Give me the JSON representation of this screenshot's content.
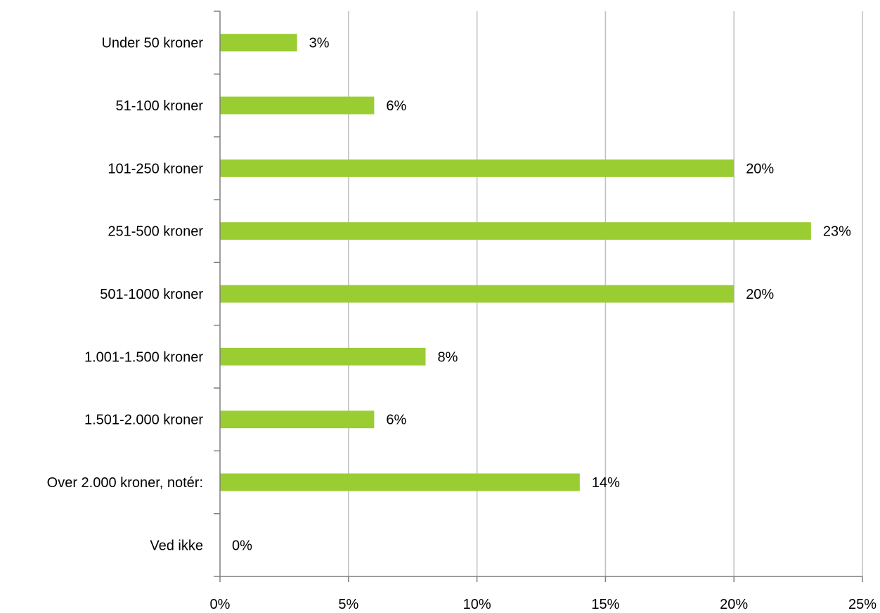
{
  "chart_data": {
    "type": "bar",
    "orientation": "horizontal",
    "title": "",
    "xlabel": "",
    "ylabel": "",
    "categories": [
      "Under 50 kroner",
      "51-100 kroner",
      "101-250 kroner",
      "251-500 kroner",
      "501-1000 kroner",
      "1.001-1.500 kroner",
      "1.501-2.000 kroner",
      "Over 2.000 kroner, notér:",
      "Ved ikke"
    ],
    "values": [
      3,
      6,
      20,
      23,
      20,
      8,
      6,
      14,
      0
    ],
    "data_labels": [
      "3%",
      "6%",
      "20%",
      "23%",
      "20%",
      "8%",
      "6%",
      "14%",
      "0%"
    ],
    "xlim": [
      0,
      25
    ],
    "x_ticks": [
      0,
      5,
      10,
      15,
      20,
      25
    ],
    "x_tick_labels": [
      "0%",
      "5%",
      "10%",
      "15%",
      "20%",
      "25%"
    ],
    "grid": "vertical",
    "legend": "none",
    "bar_color": "#9acd32",
    "grid_color": "#bfbfbf",
    "axis_color": "#7f7f7f"
  }
}
